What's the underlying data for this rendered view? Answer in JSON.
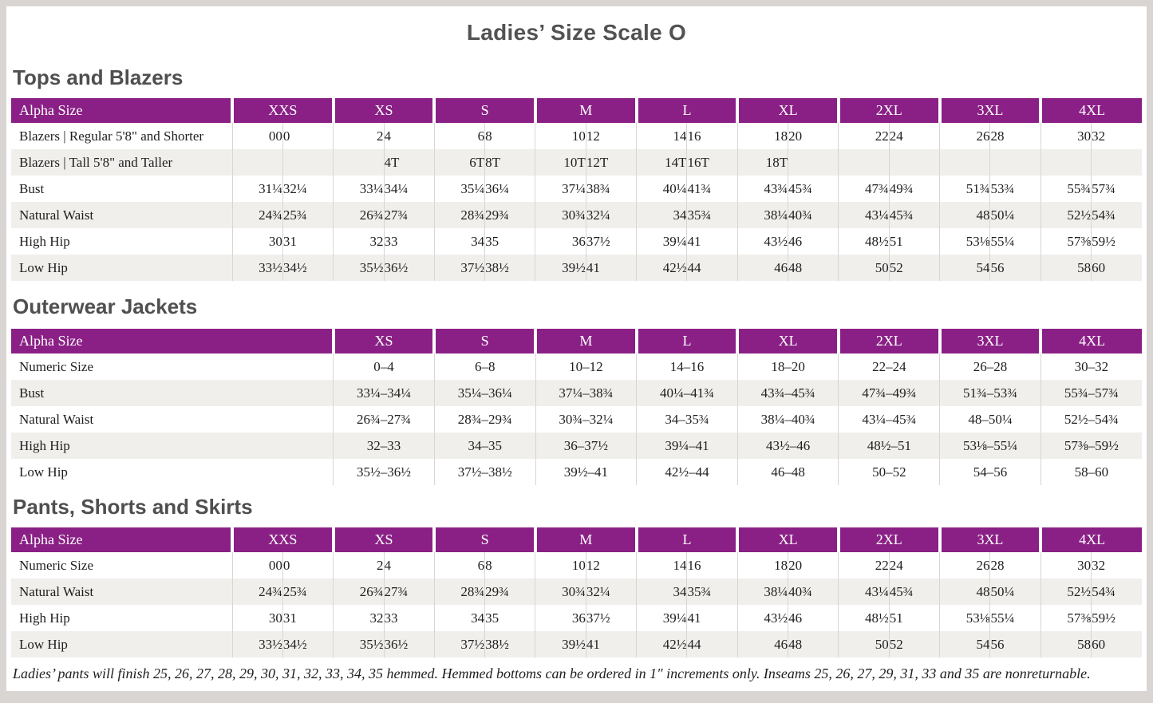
{
  "page": {
    "title": "Ladies’ Size Scale O",
    "footnote": "Ladies’ pants will finish 25, 26, 27, 28, 29, 30, 31, 32, 33, 34, 35 hemmed. Hemmed bottoms can be ordered in 1″ increments only. Inseams 25, 26, 27, 29, 31, 33 and 35 are nonreturnable."
  },
  "colors": {
    "header_purple": "#8a2086",
    "row_stripe": "#f1efec",
    "frame_gray": "#d8d5d2",
    "divider_gray": "#d9d6d2"
  },
  "tables": [
    {
      "id": "tops-and-blazers",
      "heading": "Tops and Blazers",
      "label_header": "Alpha Size",
      "split_columns": true,
      "groups": [
        "XXS",
        "XS",
        "S",
        "M",
        "L",
        "XL",
        "2XL",
        "3XL",
        "4XL"
      ],
      "rows": [
        {
          "label": "Blazers | Regular 5'8\" and Shorter",
          "cells": [
            "00",
            "0",
            "2",
            "4",
            "6",
            "8",
            "10",
            "12",
            "14",
            "16",
            "18",
            "20",
            "22",
            "24",
            "26",
            "28",
            "30",
            "32"
          ]
        },
        {
          "label": "Blazers | Tall 5'8\" and Taller",
          "cells": [
            "",
            "",
            "",
            "4T",
            "6T",
            "8T",
            "10T",
            "12T",
            "14T",
            "16T",
            "18T",
            "",
            "",
            "",
            "",
            "",
            "",
            ""
          ]
        },
        {
          "label": "Bust",
          "cells": [
            "31¼",
            "32¼",
            "33¼",
            "34¼",
            "35¼",
            "36¼",
            "37¼",
            "38¾",
            "40¼",
            "41¾",
            "43¾",
            "45¾",
            "47¾",
            "49¾",
            "51¾",
            "53¾",
            "55¾",
            "57¾"
          ]
        },
        {
          "label": "Natural Waist",
          "cells": [
            "24¾",
            "25¾",
            "26¾",
            "27¾",
            "28¾",
            "29¾",
            "30¾",
            "32¼",
            "34",
            "35¾",
            "38¼",
            "40¾",
            "43¼",
            "45¾",
            "48",
            "50¼",
            "52½",
            "54¾"
          ]
        },
        {
          "label": "High Hip",
          "cells": [
            "30",
            "31",
            "32",
            "33",
            "34",
            "35",
            "36",
            "37½",
            "39¼",
            "41",
            "43½",
            "46",
            "48½",
            "51",
            "53⅛",
            "55¼",
            "57⅜",
            "59½"
          ]
        },
        {
          "label": "Low Hip",
          "cells": [
            "33½",
            "34½",
            "35½",
            "36½",
            "37½",
            "38½",
            "39½",
            "41",
            "42½",
            "44",
            "46",
            "48",
            "50",
            "52",
            "54",
            "56",
            "58",
            "60"
          ]
        }
      ]
    },
    {
      "id": "outerwear-jackets",
      "heading": "Outerwear Jackets",
      "label_header": "Alpha Size",
      "split_columns": false,
      "groups": [
        "XS",
        "S",
        "M",
        "L",
        "XL",
        "2XL",
        "3XL",
        "4XL"
      ],
      "rows": [
        {
          "label": "Numeric Size",
          "cells": [
            "0–4",
            "6–8",
            "10–12",
            "14–16",
            "18–20",
            "22–24",
            "26–28",
            "30–32"
          ]
        },
        {
          "label": "Bust",
          "cells": [
            "33¼–34¼",
            "35¼–36¼",
            "37¼–38¾",
            "40¼–41¾",
            "43¾–45¾",
            "47¾–49¾",
            "51¾–53¾",
            "55¾–57¾"
          ]
        },
        {
          "label": "Natural Waist",
          "cells": [
            "26¾–27¾",
            "28¾–29¾",
            "30¾–32¼",
            "34–35¾",
            "38¼–40¾",
            "43¼–45¾",
            "48–50¼",
            "52½–54¾"
          ]
        },
        {
          "label": "High Hip",
          "cells": [
            "32–33",
            "34–35",
            "36–37½",
            "39¼–41",
            "43½–46",
            "48½–51",
            "53⅛–55¼",
            "57⅜–59½"
          ]
        },
        {
          "label": "Low Hip",
          "cells": [
            "35½–36½",
            "37½–38½",
            "39½–41",
            "42½–44",
            "46–48",
            "50–52",
            "54–56",
            "58–60"
          ]
        }
      ]
    },
    {
      "id": "pants-shorts-and-skirts",
      "heading": "Pants, Shorts and Skirts",
      "label_header": "Alpha Size",
      "split_columns": true,
      "groups": [
        "XXS",
        "XS",
        "S",
        "M",
        "L",
        "XL",
        "2XL",
        "3XL",
        "4XL"
      ],
      "rows": [
        {
          "label": "Numeric Size",
          "cells": [
            "00",
            "0",
            "2",
            "4",
            "6",
            "8",
            "10",
            "12",
            "14",
            "16",
            "18",
            "20",
            "22",
            "24",
            "26",
            "28",
            "30",
            "32"
          ]
        },
        {
          "label": "Natural Waist",
          "cells": [
            "24¾",
            "25¾",
            "26¾",
            "27¾",
            "28¾",
            "29¾",
            "30¾",
            "32¼",
            "34",
            "35¾",
            "38¼",
            "40¾",
            "43¼",
            "45¾",
            "48",
            "50¼",
            "52½",
            "54¾"
          ]
        },
        {
          "label": "High Hip",
          "cells": [
            "30",
            "31",
            "32",
            "33",
            "34",
            "35",
            "36",
            "37½",
            "39¼",
            "41",
            "43½",
            "46",
            "48½",
            "51",
            "53⅛",
            "55¼",
            "57⅜",
            "59½"
          ]
        },
        {
          "label": "Low Hip",
          "cells": [
            "33½",
            "34½",
            "35½",
            "36½",
            "37½",
            "38½",
            "39½",
            "41",
            "42½",
            "44",
            "46",
            "48",
            "50",
            "52",
            "54",
            "56",
            "58",
            "60"
          ]
        }
      ]
    }
  ]
}
